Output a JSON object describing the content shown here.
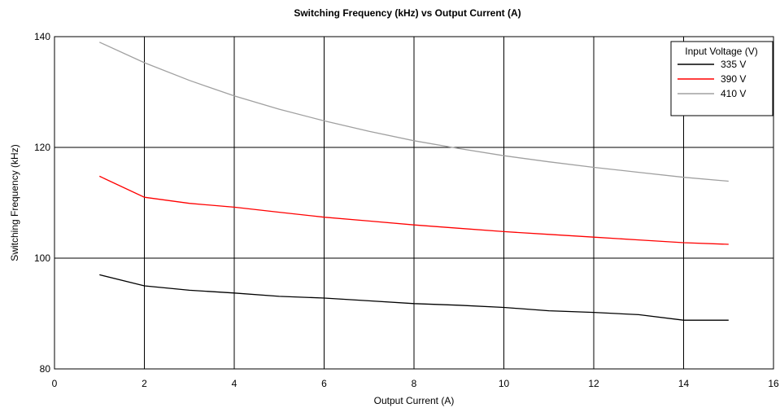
{
  "chart_data": {
    "type": "line",
    "title": "Switching Frequency (kHz) vs Output Current (A)",
    "xlabel": "Output Current (A)",
    "ylabel": "Switching Frequency (kHz)",
    "xlim": [
      0,
      16
    ],
    "ylim": [
      80,
      140
    ],
    "x_ticks": [
      0,
      2,
      4,
      6,
      8,
      10,
      12,
      14,
      16
    ],
    "y_ticks": [
      80,
      100,
      120,
      140
    ],
    "grid": true,
    "legend": {
      "title": "Input Voltage (V)",
      "placement": "top-right"
    },
    "x": [
      1,
      2,
      3,
      4,
      5,
      6,
      7,
      8,
      9,
      10,
      11,
      12,
      13,
      14,
      15
    ],
    "series": [
      {
        "name": "335 V",
        "color": "#000000",
        "values": [
          97.0,
          95.0,
          94.2,
          93.7,
          93.1,
          92.8,
          92.3,
          91.8,
          91.5,
          91.1,
          90.5,
          90.2,
          89.8,
          88.8,
          88.8
        ]
      },
      {
        "name": "390 V",
        "color": "#ff0000",
        "values": [
          114.8,
          111.0,
          109.9,
          109.2,
          108.3,
          107.4,
          106.7,
          106.0,
          105.4,
          104.8,
          104.3,
          103.8,
          103.3,
          102.8,
          102.5
        ]
      },
      {
        "name": "410 V",
        "color": "#a0a0a0",
        "values": [
          139.0,
          135.3,
          132.1,
          129.3,
          126.9,
          124.8,
          122.9,
          121.2,
          119.8,
          118.5,
          117.4,
          116.4,
          115.5,
          114.6,
          113.9
        ]
      }
    ]
  }
}
